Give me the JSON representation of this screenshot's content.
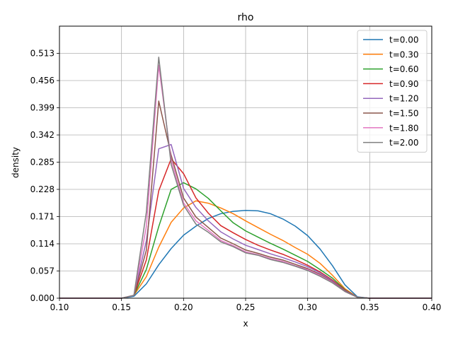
{
  "chart_data": {
    "type": "line",
    "title": "rho",
    "xlabel": "x",
    "ylabel": "density",
    "xlim": [
      0.1,
      0.4
    ],
    "ylim": [
      0.0,
      0.57
    ],
    "xticks": [
      "0.10",
      "0.15",
      "0.20",
      "0.25",
      "0.30",
      "0.35",
      "0.40"
    ],
    "yticks": [
      "0.000",
      "0.057",
      "0.114",
      "0.171",
      "0.228",
      "0.285",
      "0.342",
      "0.399",
      "0.456",
      "0.513"
    ],
    "grid": true,
    "legend_position": "top-right",
    "x": [
      0.1,
      0.11,
      0.12,
      0.13,
      0.14,
      0.15,
      0.16,
      0.17,
      0.18,
      0.19,
      0.2,
      0.21,
      0.22,
      0.23,
      0.24,
      0.25,
      0.26,
      0.27,
      0.28,
      0.29,
      0.3,
      0.31,
      0.32,
      0.33,
      0.34,
      0.35,
      0.36,
      0.37,
      0.38,
      0.39,
      0.4
    ],
    "series": [
      {
        "name": "t=0.00",
        "color": "#1f77b4",
        "values": [
          0,
          0,
          0,
          0,
          0,
          0,
          0.004,
          0.03,
          0.07,
          0.104,
          0.132,
          0.151,
          0.167,
          0.177,
          0.182,
          0.184,
          0.183,
          0.177,
          0.166,
          0.151,
          0.131,
          0.103,
          0.068,
          0.028,
          0.003,
          0,
          0,
          0,
          0,
          0,
          0
        ]
      },
      {
        "name": "t=0.30",
        "color": "#ff7f0e",
        "values": [
          0,
          0,
          0,
          0,
          0,
          0,
          0.006,
          0.045,
          0.107,
          0.159,
          0.189,
          0.204,
          0.199,
          0.189,
          0.177,
          0.162,
          0.148,
          0.134,
          0.121,
          0.106,
          0.092,
          0.073,
          0.048,
          0.02,
          0.002,
          0,
          0,
          0,
          0,
          0,
          0
        ]
      },
      {
        "name": "t=0.60",
        "color": "#2ca02c",
        "values": [
          0,
          0,
          0,
          0,
          0,
          0,
          0.006,
          0.06,
          0.15,
          0.228,
          0.242,
          0.229,
          0.209,
          0.183,
          0.158,
          0.141,
          0.128,
          0.115,
          0.103,
          0.09,
          0.077,
          0.06,
          0.042,
          0.018,
          0.002,
          0,
          0,
          0,
          0,
          0,
          0
        ]
      },
      {
        "name": "t=0.90",
        "color": "#d62728",
        "values": [
          0,
          0,
          0,
          0,
          0,
          0,
          0.006,
          0.08,
          0.225,
          0.292,
          0.261,
          0.21,
          0.178,
          0.152,
          0.137,
          0.123,
          0.111,
          0.101,
          0.092,
          0.081,
          0.069,
          0.055,
          0.038,
          0.017,
          0.002,
          0,
          0,
          0,
          0,
          0,
          0
        ]
      },
      {
        "name": "t=1.20",
        "color": "#9467bd",
        "values": [
          0,
          0,
          0,
          0,
          0,
          0,
          0.006,
          0.12,
          0.313,
          0.322,
          0.23,
          0.19,
          0.162,
          0.139,
          0.124,
          0.111,
          0.102,
          0.093,
          0.085,
          0.076,
          0.066,
          0.053,
          0.036,
          0.016,
          0.002,
          0,
          0,
          0,
          0,
          0,
          0
        ]
      },
      {
        "name": "t=1.50",
        "color": "#8c564b",
        "values": [
          0,
          0,
          0,
          0,
          0,
          0,
          0.006,
          0.1,
          0.413,
          0.3,
          0.21,
          0.17,
          0.148,
          0.126,
          0.114,
          0.101,
          0.094,
          0.086,
          0.08,
          0.071,
          0.062,
          0.05,
          0.034,
          0.015,
          0.002,
          0,
          0,
          0,
          0,
          0,
          0
        ]
      },
      {
        "name": "t=1.80",
        "color": "#e377c2",
        "values": [
          0,
          0,
          0,
          0,
          0,
          0,
          0.006,
          0.15,
          0.488,
          0.29,
          0.2,
          0.162,
          0.142,
          0.121,
          0.11,
          0.097,
          0.091,
          0.083,
          0.077,
          0.068,
          0.06,
          0.048,
          0.033,
          0.014,
          0.002,
          0,
          0,
          0,
          0,
          0,
          0
        ]
      },
      {
        "name": "t=2.00",
        "color": "#7f7f7f",
        "values": [
          0,
          0,
          0,
          0,
          0,
          0,
          0.006,
          0.18,
          0.505,
          0.28,
          0.195,
          0.155,
          0.138,
          0.118,
          0.108,
          0.095,
          0.09,
          0.081,
          0.075,
          0.067,
          0.058,
          0.046,
          0.032,
          0.014,
          0.002,
          0,
          0,
          0,
          0,
          0,
          0
        ]
      }
    ]
  }
}
